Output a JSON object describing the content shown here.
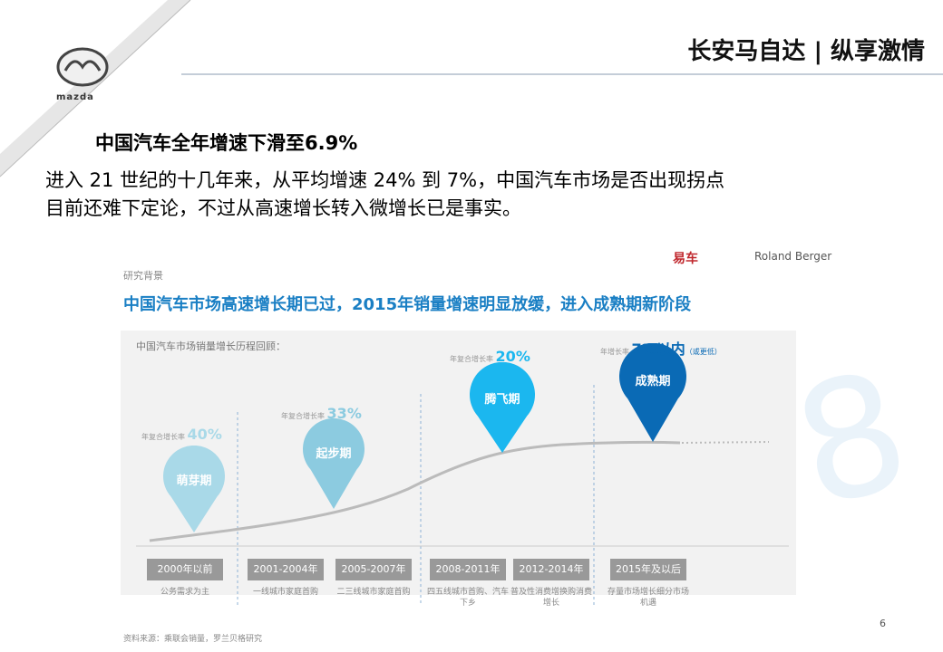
{
  "header": {
    "logo": "mazda",
    "brand": "长安马自达 | 纵享激情"
  },
  "slide": {
    "title": "中国汽车全年增速下滑至6.9%",
    "body": [
      "进入 21 世纪的十几年来，从平均增速 24% 到 7%，中国汽车市场是否出现拐点",
      "目前还难下定论，不过从高速增长转入微增长已是事实。"
    ],
    "page": "6"
  },
  "infographic": {
    "section": "研究背景",
    "logos": [
      "易车",
      "Roland Berger"
    ],
    "headline": "中国汽车市场高速增长期已过，2015年销量增速明显放缓，进入成熟期新阶段",
    "subtitle": "中国汽车市场销量增长历程回顾：",
    "stages": [
      {
        "name": "萌芽期",
        "rate_label": "年复合增长率",
        "rate": "40%",
        "color": "#a9d9e8"
      },
      {
        "name": "起步期",
        "rate_label": "年复合增长率",
        "rate": "33%",
        "color": "#8ccbe0"
      },
      {
        "name": "腾飞期",
        "rate_label": "年复合增长率",
        "rate": "20%",
        "color": "#1bb7ef"
      },
      {
        "name": "成熟期",
        "rate_label": "年增长率",
        "rate": "7%以内",
        "note": "（或更低）",
        "color": "#0a6ab5"
      }
    ],
    "periods": [
      {
        "years": "2000年以前",
        "desc": "公务需求为主"
      },
      {
        "years": "2001-2004年",
        "desc": "一线城市家庭首购"
      },
      {
        "years": "2005-2007年",
        "desc": "二三线城市家庭首购"
      },
      {
        "years": "2008-2011年",
        "desc": "四五线城市首购、汽车下乡"
      },
      {
        "years": "2012-2014年",
        "desc": "普及性消费增换购消费增长"
      },
      {
        "years": "2015年及以后",
        "desc": "存量市场增长细分市场机遇"
      }
    ],
    "source": "资料来源：乘联会销量，罗兰贝格研究"
  }
}
